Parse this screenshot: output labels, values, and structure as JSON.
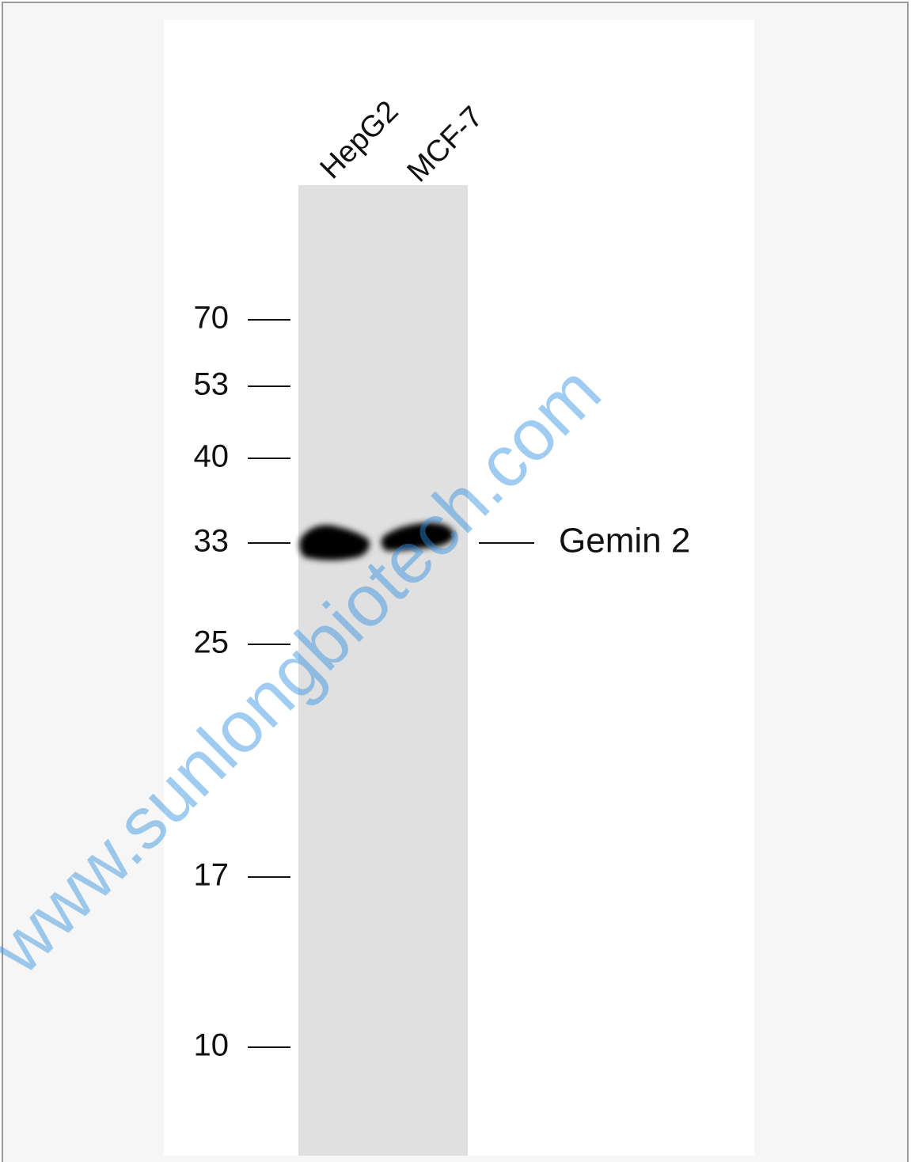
{
  "lanes": [
    "HepG2",
    "MCF-7"
  ],
  "markers": [
    70,
    53,
    40,
    33,
    25,
    17,
    10
  ],
  "band_label": "Gemin 2",
  "watermark": "www.sunlongbiotech.com"
}
